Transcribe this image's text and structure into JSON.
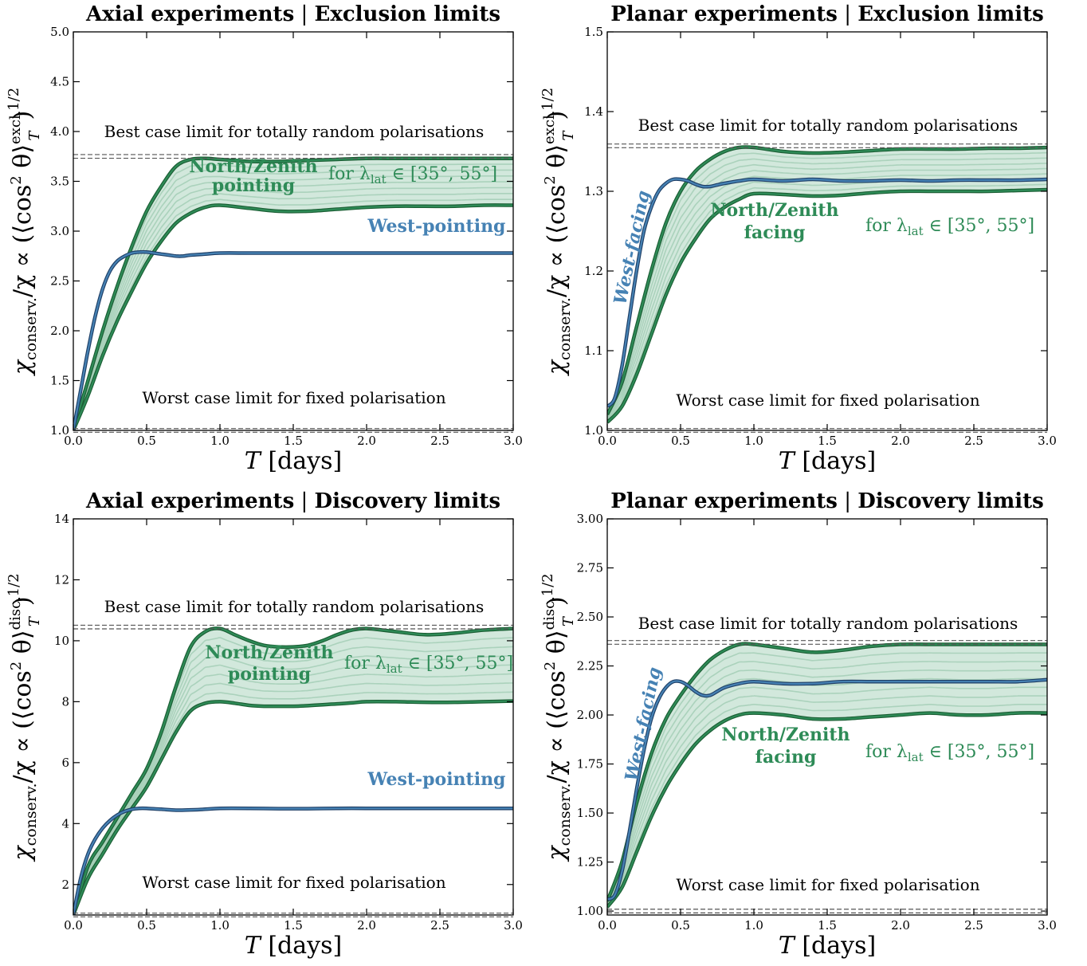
{
  "colors": {
    "green": "#2e8b57",
    "green_edge": "#1b5e34",
    "green_fill": "#d2e8dc",
    "green_inner": "#9ecbb1",
    "blue": "#4682b4",
    "blue_edge": "#1f3f66",
    "hline": "#555555"
  },
  "axes_common": {
    "xlabel": "T [days]",
    "xticks": [
      "0.0",
      "0.5",
      "1.0",
      "1.5",
      "2.0",
      "2.5",
      "3.0"
    ],
    "xlim": [
      0,
      3
    ]
  },
  "chart_data": [
    {
      "type": "line",
      "title": "Axial experiments | Exclusion limits",
      "ylabel": "χconserv./χ ∝ (⟨cos²θ⟩T^excl.)^1/2",
      "xlabel": "T [days]",
      "xlim": [
        0,
        3
      ],
      "ylim": [
        1.0,
        5.0
      ],
      "yticks": [
        "1.0",
        "1.5",
        "2.0",
        "2.5",
        "3.0",
        "3.5",
        "4.0",
        "4.5",
        "5.0"
      ],
      "reference_lines": [
        {
          "label": "Best case limit for totally random polarisations",
          "y": 3.75
        },
        {
          "label": "Worst case limit for fixed polarisation",
          "y": 1.0
        }
      ],
      "band": {
        "name": "North/Zenith pointing",
        "annotation": "for λlat ∈ [35°, 55°]",
        "x": [
          0,
          0.1,
          0.2,
          0.3,
          0.4,
          0.5,
          0.6,
          0.7,
          0.8,
          0.9,
          1.0,
          1.2,
          1.4,
          1.6,
          1.8,
          2.0,
          2.2,
          2.4,
          2.6,
          2.8,
          3.0
        ],
        "upper": [
          1.0,
          1.5,
          2.0,
          2.45,
          2.85,
          3.2,
          3.45,
          3.65,
          3.72,
          3.73,
          3.72,
          3.7,
          3.7,
          3.71,
          3.72,
          3.73,
          3.73,
          3.73,
          3.73,
          3.73,
          3.73
        ],
        "lower": [
          1.0,
          1.35,
          1.75,
          2.1,
          2.4,
          2.68,
          2.9,
          3.08,
          3.18,
          3.24,
          3.26,
          3.23,
          3.2,
          3.2,
          3.22,
          3.24,
          3.25,
          3.25,
          3.25,
          3.26,
          3.26
        ]
      },
      "series": [
        {
          "name": "West-pointing",
          "x": [
            0,
            0.05,
            0.1,
            0.15,
            0.2,
            0.25,
            0.3,
            0.35,
            0.4,
            0.45,
            0.5,
            0.55,
            0.6,
            0.65,
            0.7,
            0.75,
            0.8,
            0.9,
            1.0,
            1.2,
            1.4,
            1.6,
            1.8,
            2.0,
            2.2,
            2.4,
            2.6,
            2.8,
            3.0
          ],
          "y": [
            1.0,
            1.4,
            1.8,
            2.15,
            2.42,
            2.6,
            2.7,
            2.75,
            2.78,
            2.79,
            2.79,
            2.78,
            2.77,
            2.76,
            2.75,
            2.75,
            2.76,
            2.77,
            2.78,
            2.78,
            2.78,
            2.78,
            2.78,
            2.78,
            2.78,
            2.78,
            2.78,
            2.78,
            2.78
          ]
        }
      ]
    },
    {
      "type": "line",
      "title": "Planar experiments | Exclusion limits",
      "ylabel": "χconserv./χ ∝ (⟨cos²θ⟩T^excl.)^1/2",
      "xlabel": "T [days]",
      "xlim": [
        0,
        3
      ],
      "ylim": [
        1.0,
        1.5
      ],
      "yticks": [
        "1.0",
        "1.1",
        "1.2",
        "1.3",
        "1.4",
        "1.5"
      ],
      "reference_lines": [
        {
          "label": "Best case limit for totally random polarisations",
          "y": 1.357
        },
        {
          "label": "Worst case limit for fixed polarisation",
          "y": 1.0
        }
      ],
      "band": {
        "name": "North/Zenith facing",
        "annotation": "for λlat ∈ [35°, 55°]",
        "x": [
          0,
          0.1,
          0.2,
          0.3,
          0.4,
          0.5,
          0.6,
          0.7,
          0.8,
          0.9,
          1.0,
          1.2,
          1.4,
          1.6,
          1.8,
          2.0,
          2.2,
          2.4,
          2.6,
          2.8,
          3.0
        ],
        "upper": [
          1.02,
          1.06,
          1.13,
          1.2,
          1.26,
          1.3,
          1.325,
          1.34,
          1.35,
          1.355,
          1.355,
          1.35,
          1.348,
          1.349,
          1.351,
          1.353,
          1.353,
          1.353,
          1.354,
          1.354,
          1.355
        ],
        "lower": [
          1.01,
          1.03,
          1.07,
          1.12,
          1.17,
          1.21,
          1.24,
          1.265,
          1.28,
          1.29,
          1.297,
          1.296,
          1.294,
          1.295,
          1.298,
          1.3,
          1.3,
          1.3,
          1.3,
          1.301,
          1.302
        ]
      },
      "series": [
        {
          "name": "West-facing",
          "x": [
            0,
            0.05,
            0.1,
            0.15,
            0.2,
            0.25,
            0.3,
            0.35,
            0.4,
            0.45,
            0.5,
            0.55,
            0.6,
            0.65,
            0.7,
            0.75,
            0.8,
            0.9,
            1.0,
            1.2,
            1.4,
            1.6,
            1.8,
            2.0,
            2.2,
            2.4,
            2.6,
            2.8,
            3.0
          ],
          "y": [
            1.03,
            1.04,
            1.08,
            1.14,
            1.2,
            1.25,
            1.28,
            1.3,
            1.31,
            1.315,
            1.315,
            1.313,
            1.309,
            1.306,
            1.306,
            1.308,
            1.31,
            1.313,
            1.315,
            1.313,
            1.315,
            1.313,
            1.313,
            1.314,
            1.313,
            1.314,
            1.314,
            1.314,
            1.315
          ]
        }
      ]
    },
    {
      "type": "line",
      "title": "Axial experiments | Discovery limits",
      "ylabel": "χconserv./χ ∝ (⟨cos²θ⟩T^disc.)^1/2",
      "xlabel": "T [days]",
      "xlim": [
        0,
        3
      ],
      "ylim": [
        1,
        14
      ],
      "yticks": [
        "2",
        "4",
        "6",
        "8",
        "10",
        "12",
        "14"
      ],
      "reference_lines": [
        {
          "label": "Best case limit for totally random polarisations",
          "y": 10.45
        },
        {
          "label": "Worst case limit for fixed polarisation",
          "y": 1.0
        }
      ],
      "band": {
        "name": "North/Zenith pointing",
        "annotation": "for λlat ∈ [35°, 55°]",
        "x": [
          0,
          0.1,
          0.2,
          0.3,
          0.4,
          0.5,
          0.6,
          0.7,
          0.8,
          0.9,
          1.0,
          1.1,
          1.2,
          1.3,
          1.4,
          1.5,
          1.6,
          1.7,
          1.8,
          1.9,
          2.0,
          2.2,
          2.4,
          2.6,
          2.8,
          3.0
        ],
        "upper": [
          1.0,
          2.6,
          3.4,
          4.2,
          5.0,
          5.8,
          7.0,
          8.5,
          9.8,
          10.3,
          10.4,
          10.2,
          10.0,
          9.85,
          9.8,
          9.8,
          9.85,
          10.0,
          10.2,
          10.35,
          10.4,
          10.3,
          10.2,
          10.25,
          10.35,
          10.4
        ],
        "lower": [
          1.0,
          2.2,
          3.0,
          3.8,
          4.5,
          5.2,
          6.1,
          7.0,
          7.7,
          7.95,
          8.0,
          7.95,
          7.88,
          7.85,
          7.85,
          7.85,
          7.87,
          7.9,
          7.93,
          7.96,
          8.0,
          8.0,
          7.98,
          7.98,
          8.0,
          8.02
        ]
      },
      "series": [
        {
          "name": "West-pointing",
          "x": [
            0,
            0.05,
            0.1,
            0.15,
            0.2,
            0.25,
            0.3,
            0.35,
            0.4,
            0.45,
            0.5,
            0.6,
            0.7,
            0.8,
            0.9,
            1.0,
            1.2,
            1.4,
            1.6,
            1.8,
            2.0,
            2.2,
            2.4,
            2.6,
            2.8,
            3.0
          ],
          "y": [
            1.0,
            2.2,
            3.0,
            3.5,
            3.85,
            4.1,
            4.28,
            4.4,
            4.47,
            4.5,
            4.5,
            4.47,
            4.44,
            4.45,
            4.47,
            4.5,
            4.5,
            4.49,
            4.49,
            4.5,
            4.5,
            4.5,
            4.5,
            4.5,
            4.5,
            4.5
          ]
        }
      ]
    },
    {
      "type": "line",
      "title": "Planar experiments | Discovery limits",
      "ylabel": "χconserv./χ ∝ (⟨cos²θ⟩T^disc.)^1/2",
      "xlabel": "T [days]",
      "xlim": [
        0,
        3
      ],
      "ylim": [
        0.98,
        3.0
      ],
      "yticks": [
        "1.00",
        "1.25",
        "1.50",
        "1.75",
        "2.00",
        "2.25",
        "2.50",
        "2.75",
        "3.00"
      ],
      "reference_lines": [
        {
          "label": "Best case limit for totally random polarisations",
          "y": 2.37
        },
        {
          "label": "Worst case limit for fixed polarisation",
          "y": 1.0
        }
      ],
      "band": {
        "name": "North/Zenith facing",
        "annotation": "for λlat ∈ [35°, 55°]",
        "x": [
          0,
          0.1,
          0.2,
          0.3,
          0.4,
          0.5,
          0.6,
          0.7,
          0.8,
          0.9,
          1.0,
          1.2,
          1.4,
          1.6,
          1.8,
          2.0,
          2.2,
          2.4,
          2.6,
          2.8,
          3.0
        ],
        "upper": [
          1.05,
          1.25,
          1.55,
          1.8,
          1.98,
          2.1,
          2.2,
          2.28,
          2.33,
          2.36,
          2.36,
          2.34,
          2.32,
          2.33,
          2.35,
          2.36,
          2.36,
          2.36,
          2.36,
          2.36,
          2.36
        ],
        "lower": [
          1.02,
          1.12,
          1.3,
          1.48,
          1.63,
          1.75,
          1.85,
          1.92,
          1.97,
          2.0,
          2.01,
          2.0,
          1.98,
          1.98,
          1.99,
          2.0,
          2.01,
          2.0,
          2.0,
          2.01,
          2.01
        ]
      },
      "series": [
        {
          "name": "West-facing",
          "x": [
            0,
            0.05,
            0.1,
            0.15,
            0.2,
            0.25,
            0.3,
            0.35,
            0.4,
            0.45,
            0.5,
            0.55,
            0.6,
            0.65,
            0.7,
            0.75,
            0.8,
            0.9,
            1.0,
            1.2,
            1.4,
            1.6,
            1.8,
            2.0,
            2.2,
            2.4,
            2.6,
            2.8,
            3.0
          ],
          "y": [
            1.06,
            1.08,
            1.2,
            1.4,
            1.62,
            1.82,
            1.98,
            2.08,
            2.14,
            2.17,
            2.17,
            2.15,
            2.12,
            2.1,
            2.1,
            2.12,
            2.14,
            2.16,
            2.17,
            2.16,
            2.16,
            2.17,
            2.17,
            2.17,
            2.17,
            2.17,
            2.17,
            2.17,
            2.18
          ]
        }
      ]
    }
  ],
  "panels": [
    {
      "title_left": "Axial experiments",
      "title_right": "Exclusion limits",
      "title_sep": "|",
      "ylabel_main": "χ",
      "ylabel_sub": "conserv.",
      "ylabel_mid": "/χ ∝ (⟨cos",
      "ylabel_exp": "2",
      "ylabel_theta": " θ⟩",
      "ylabel_sup": "excl.",
      "ylabel_subT": "T",
      "ylabel_close": ")",
      "ylabel_pow": "1/2",
      "xlabel_T": "T",
      "xlabel_unit": " [days]",
      "best_label": "Best case limit for totally random polarisations",
      "worst_label": "Worst case limit for fixed polarisation",
      "band_label_1": "North/Zenith",
      "band_label_2": "pointing",
      "for_text": "for λ",
      "lat_sub": "lat",
      "range_text": " ∈ [35°, 55°]",
      "west_label": "West-pointing"
    },
    {
      "title_left": "Planar experiments",
      "title_right": "Exclusion limits",
      "title_sep": "|",
      "ylabel_main": "χ",
      "ylabel_sub": "conserv.",
      "ylabel_mid": "/χ ∝ (⟨cos",
      "ylabel_exp": "2",
      "ylabel_theta": " θ⟩",
      "ylabel_sup": "excl.",
      "ylabel_subT": "T",
      "ylabel_close": ")",
      "ylabel_pow": "1/2",
      "xlabel_T": "T",
      "xlabel_unit": " [days]",
      "best_label": "Best case limit for totally random polarisations",
      "worst_label": "Worst case limit for fixed polarisation",
      "band_label_1": "North/Zenith",
      "band_label_2": "facing",
      "for_text": "for λ",
      "lat_sub": "lat",
      "range_text": " ∈ [35°, 55°]",
      "west_label": "West-facing"
    },
    {
      "title_left": "Axial experiments",
      "title_right": "Discovery limits",
      "title_sep": "|",
      "ylabel_main": "χ",
      "ylabel_sub": "conserv.",
      "ylabel_mid": "/χ ∝ (⟨cos",
      "ylabel_exp": "2",
      "ylabel_theta": " θ⟩",
      "ylabel_sup": "disc.",
      "ylabel_subT": "T",
      "ylabel_close": ")",
      "ylabel_pow": "1/2",
      "xlabel_T": "T",
      "xlabel_unit": " [days]",
      "best_label": "Best case limit for totally random polarisations",
      "worst_label": "Worst case limit for fixed polarisation",
      "band_label_1": "North/Zenith",
      "band_label_2": "pointing",
      "for_text": "for λ",
      "lat_sub": "lat",
      "range_text": " ∈ [35°, 55°]",
      "west_label": "West-pointing"
    },
    {
      "title_left": "Planar experiments",
      "title_right": "Discovery limits",
      "title_sep": "|",
      "ylabel_main": "χ",
      "ylabel_sub": "conserv.",
      "ylabel_mid": "/χ ∝ (⟨cos",
      "ylabel_exp": "2",
      "ylabel_theta": " θ⟩",
      "ylabel_sup": "disc.",
      "ylabel_subT": "T",
      "ylabel_close": ")",
      "ylabel_pow": "1/2",
      "xlabel_T": "T",
      "xlabel_unit": " [days]",
      "best_label": "Best case limit for totally random polarisations",
      "worst_label": "Worst case limit for fixed polarisation",
      "band_label_1": "North/Zenith",
      "band_label_2": "facing",
      "for_text": "for λ",
      "lat_sub": "lat",
      "range_text": " ∈ [35°, 55°]",
      "west_label": "West-facing"
    }
  ]
}
